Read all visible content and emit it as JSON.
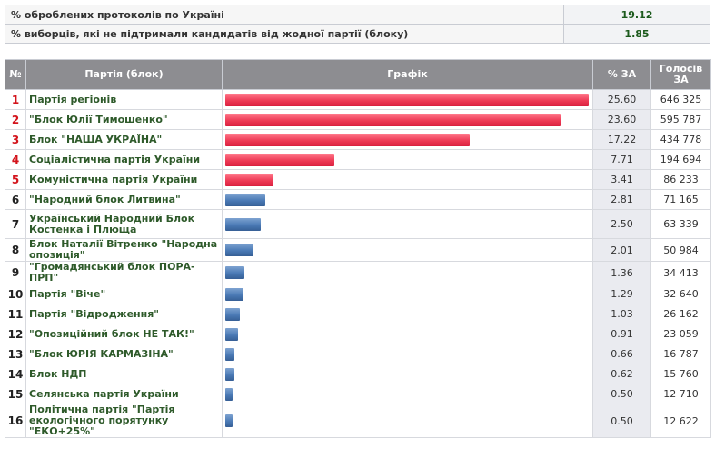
{
  "summary": [
    {
      "label": "% оброблених протоколів по Україні",
      "value": "19.12"
    },
    {
      "label": "% виборців, які не підтримали кандидатів від жодної партії (блоку)",
      "value": "1.85"
    }
  ],
  "table": {
    "headers": {
      "num": "№",
      "party": "Партія (блок)",
      "chart": "Графік",
      "pct": "% ЗА",
      "votes": "Голосів ЗА"
    },
    "rows": [
      {
        "num": "1",
        "party": "Партія регіонів",
        "pct": "25.60",
        "votes": "646 325",
        "share": 25.6,
        "color": "red"
      },
      {
        "num": "2",
        "party": "\"Блок Юлії Тимошенко\"",
        "pct": "23.60",
        "votes": "595 787",
        "share": 23.6,
        "color": "red"
      },
      {
        "num": "3",
        "party": "Блок \"НАША УКРАЇНА\"",
        "pct": "17.22",
        "votes": "434 778",
        "share": 17.22,
        "color": "red"
      },
      {
        "num": "4",
        "party": "Соціалістична партія України",
        "pct": "7.71",
        "votes": "194 694",
        "share": 7.71,
        "color": "red"
      },
      {
        "num": "5",
        "party": "Комуністична партія України",
        "pct": "3.41",
        "votes": "86 233",
        "share": 3.41,
        "color": "red"
      },
      {
        "num": "6",
        "party": "\"Народний блок Литвина\"",
        "pct": "2.81",
        "votes": "71 165",
        "share": 2.81,
        "color": "blue"
      },
      {
        "num": "7",
        "party": "Український Народний Блок Костенка і Плюща",
        "pct": "2.50",
        "votes": "63 339",
        "share": 2.5,
        "color": "blue"
      },
      {
        "num": "8",
        "party": "Блок Наталії Вітренко \"Народна опозиція\"",
        "pct": "2.01",
        "votes": "50 984",
        "share": 2.01,
        "color": "blue"
      },
      {
        "num": "9",
        "party": "\"Громадянський блок ПОРА-ПРП\"",
        "pct": "1.36",
        "votes": "34 413",
        "share": 1.36,
        "color": "blue"
      },
      {
        "num": "10",
        "party": "Партія \"Віче\"",
        "pct": "1.29",
        "votes": "32 640",
        "share": 1.29,
        "color": "blue"
      },
      {
        "num": "11",
        "party": "Партія \"Відродження\"",
        "pct": "1.03",
        "votes": "26 162",
        "share": 1.03,
        "color": "blue"
      },
      {
        "num": "12",
        "party": "\"Опозиційний блок НЕ ТАК!\"",
        "pct": "0.91",
        "votes": "23 059",
        "share": 0.91,
        "color": "blue"
      },
      {
        "num": "13",
        "party": "\"Блок ЮРІЯ КАРМАЗІНА\"",
        "pct": "0.66",
        "votes": "16 787",
        "share": 0.66,
        "color": "blue"
      },
      {
        "num": "14",
        "party": "Блок НДП",
        "pct": "0.62",
        "votes": "15 760",
        "share": 0.62,
        "color": "blue"
      },
      {
        "num": "15",
        "party": "Селянська партія України",
        "pct": "0.50",
        "votes": "12 710",
        "share": 0.5,
        "color": "blue"
      },
      {
        "num": "16",
        "party": "Політична партія \"Партія екологічного порятунку \"ЕКО+25%\"",
        "pct": "0.50",
        "votes": "12 622",
        "share": 0.5,
        "color": "blue"
      }
    ]
  },
  "colors": {
    "header_bg": "#8d8d91",
    "party_text": "#2e5a2a",
    "top_num": "#d3141c",
    "bar_red": "#ee3a55",
    "bar_blue": "#4a7ab5"
  }
}
